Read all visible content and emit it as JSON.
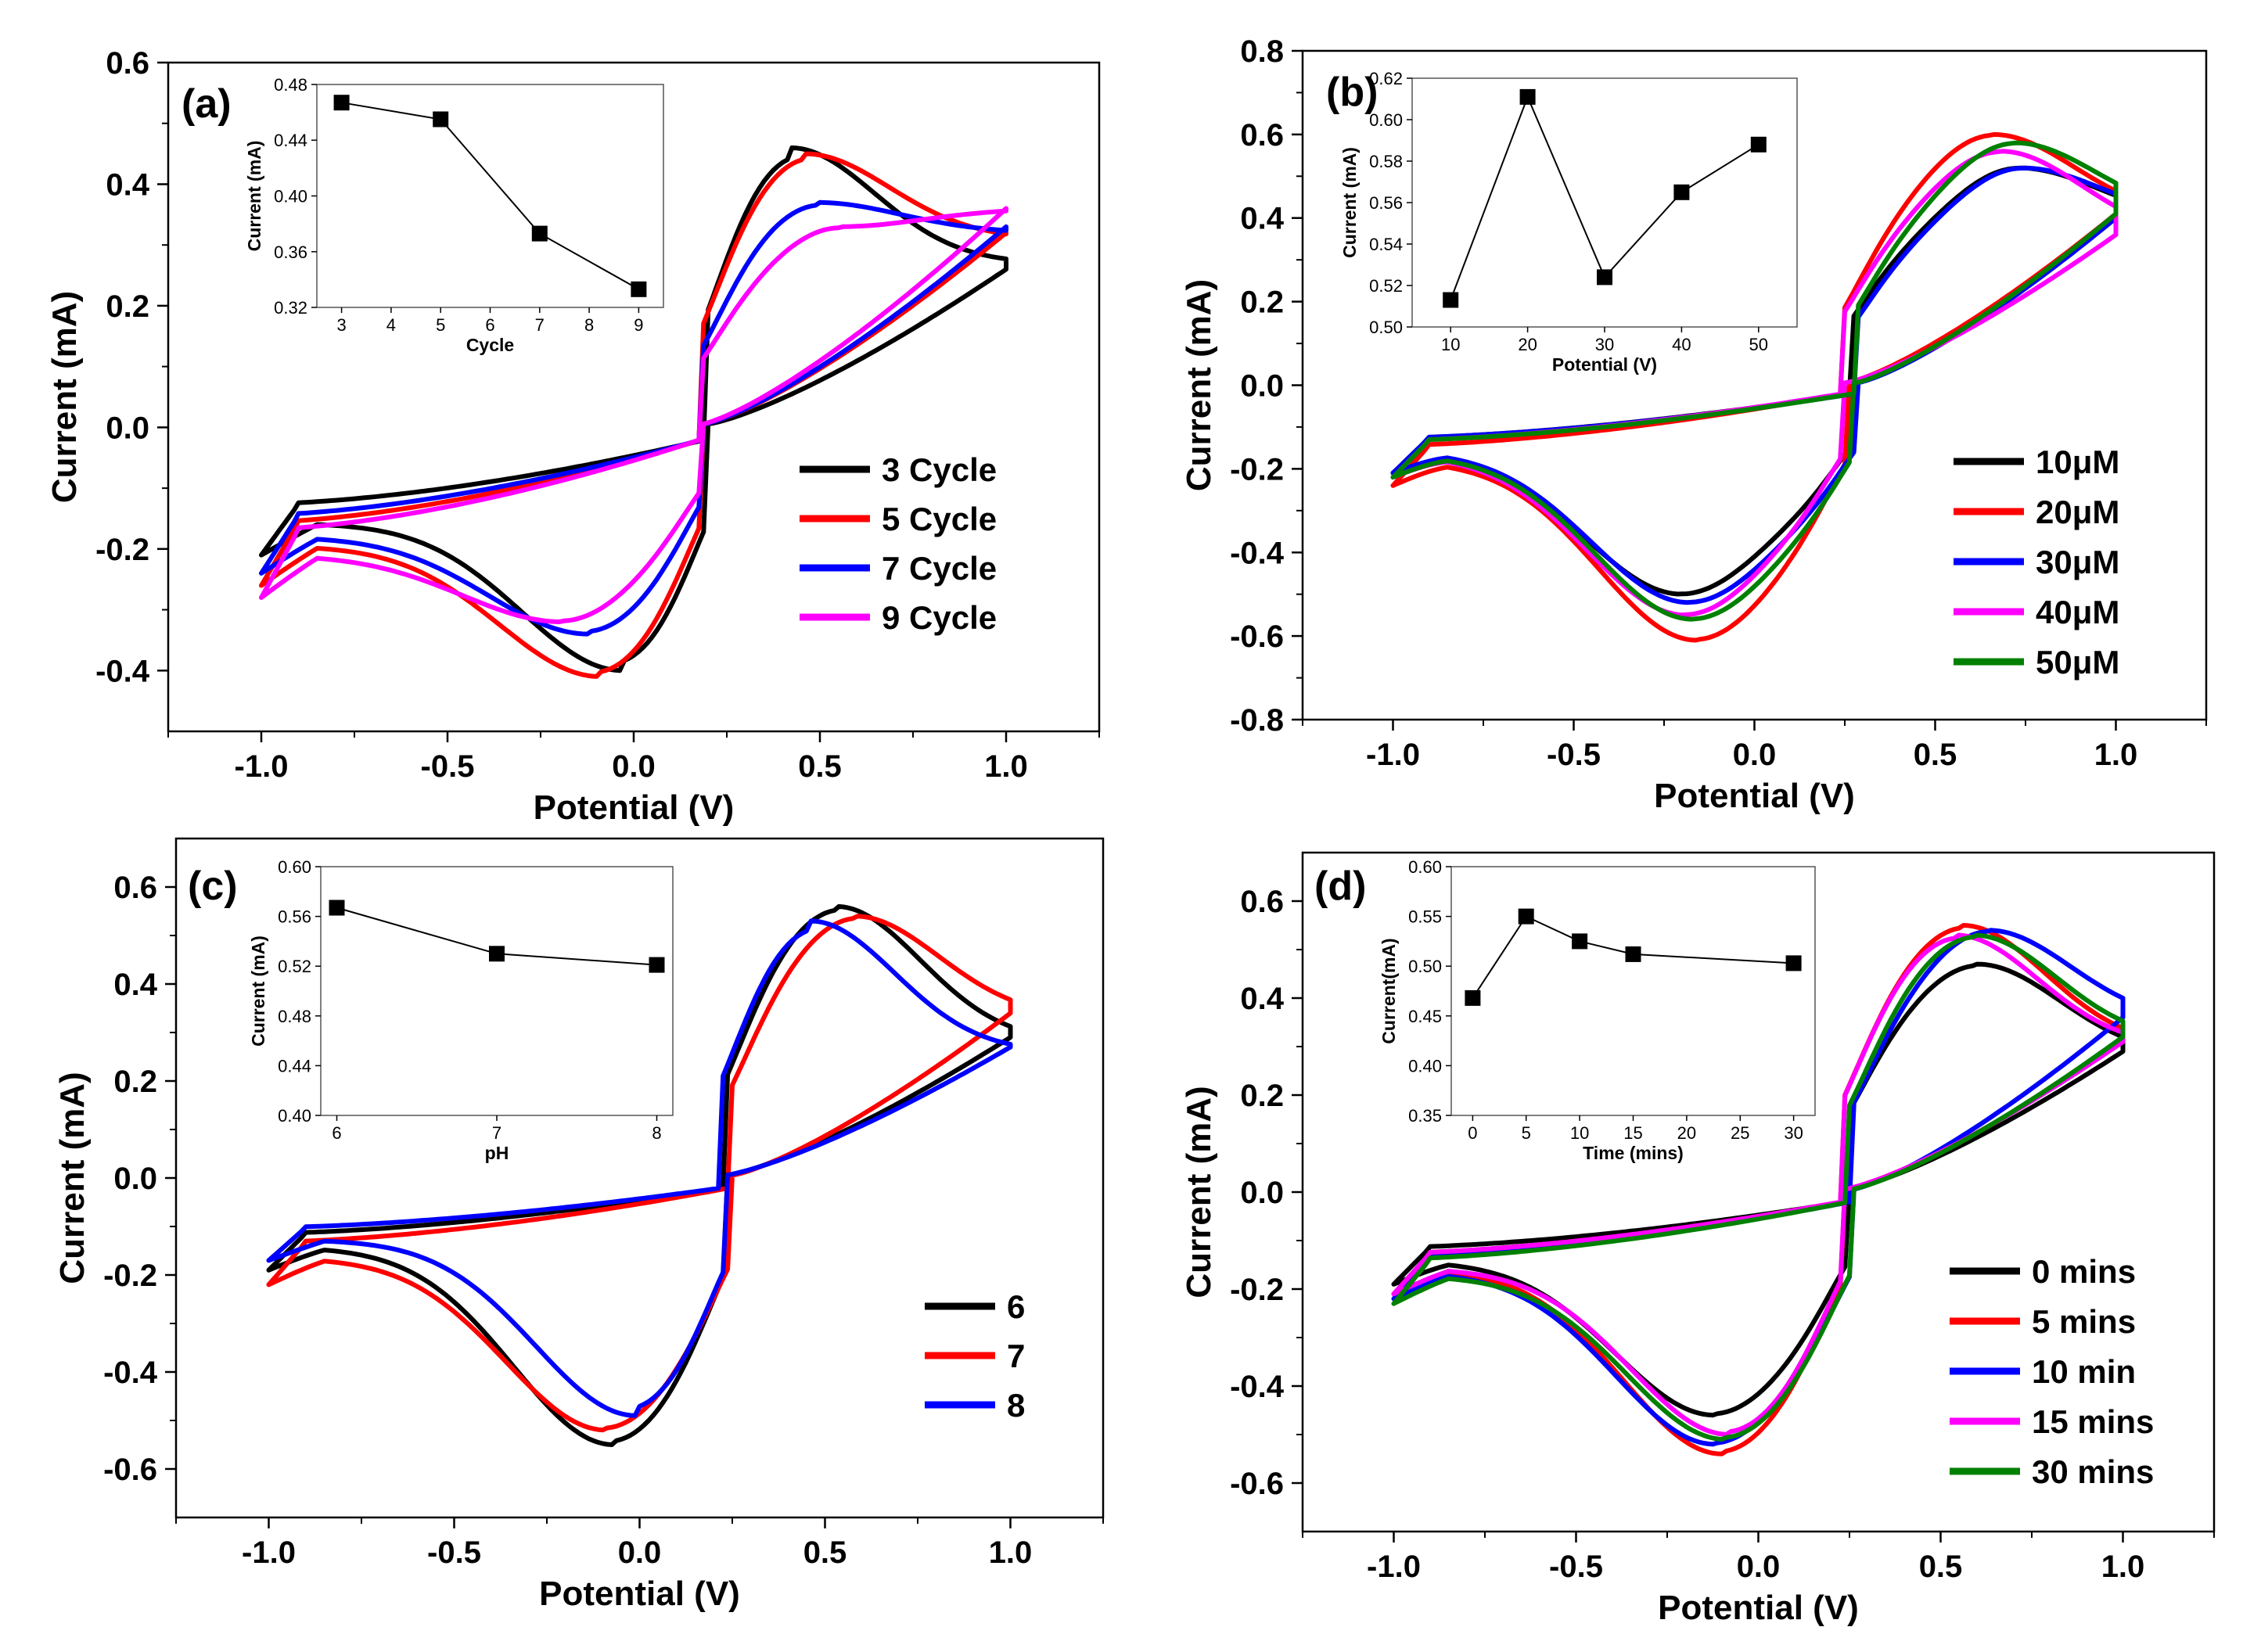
{
  "chart_data": [
    {
      "type": "line",
      "panel_label": "(a)",
      "xlabel": "Potential (V)",
      "ylabel": "Current (mA)",
      "xlim": [
        -1.25,
        1.25
      ],
      "ylim": [
        -0.5,
        0.6
      ],
      "xticks": [
        -1.0,
        -0.5,
        0.0,
        0.5,
        1.0
      ],
      "xtick_labels": [
        "-1.0",
        "-0.5",
        "0.0",
        "0.5",
        "1.0"
      ],
      "yticks": [
        -0.4,
        -0.2,
        0.0,
        0.2,
        0.4,
        0.6
      ],
      "ytick_labels": [
        "-0.4",
        "-0.2",
        "0.0",
        "0.2",
        "0.4",
        "0.6"
      ],
      "legend_position": "right",
      "series": [
        {
          "name": "3 Cycle",
          "color": "#000000",
          "Epa": 0.42,
          "Ipa": 0.46,
          "Epc": -0.03,
          "Ipc": -0.4,
          "i_start": -0.21,
          "i_end": 0.27,
          "i_neg_max": 0.26
        },
        {
          "name": "5 Cycle",
          "color": "#ff0000",
          "Epa": 0.46,
          "Ipa": 0.45,
          "Epc": -0.09,
          "Ipc": -0.41,
          "i_start": -0.26,
          "i_end": 0.31,
          "i_neg_max": 0.32
        },
        {
          "name": "7 Cycle",
          "color": "#0000ff",
          "Epa": 0.49,
          "Ipa": 0.37,
          "Epc": -0.12,
          "Ipc": -0.34,
          "i_start": -0.24,
          "i_end": 0.32,
          "i_neg_max": 0.33
        },
        {
          "name": "9 Cycle",
          "color": "#ff00ff",
          "Epa": 0.55,
          "Ipa": 0.33,
          "Epc": -0.19,
          "Ipc": -0.32,
          "i_start": -0.28,
          "i_end": 0.36,
          "i_neg_max": 0.36
        }
      ],
      "inset": {
        "xlabel": "Cycle",
        "ylabel": "Current (mA)",
        "xlim": [
          2.5,
          9.5
        ],
        "ylim": [
          0.32,
          0.48
        ],
        "xticks": [
          3,
          4,
          5,
          6,
          7,
          8,
          9
        ],
        "xtick_labels": [
          "3",
          "4",
          "5",
          "6",
          "7",
          "8",
          "9"
        ],
        "yticks": [
          0.32,
          0.36,
          0.4,
          0.44,
          0.48
        ],
        "ytick_labels": [
          "0.32",
          "0.36",
          "0.40",
          "0.44",
          "0.48"
        ],
        "x": [
          3,
          5,
          7,
          9
        ],
        "y": [
          0.467,
          0.455,
          0.373,
          0.333
        ]
      }
    },
    {
      "type": "line",
      "panel_label": "(b)",
      "xlabel": "Potential (V)",
      "ylabel": "Current (mA)",
      "xlim": [
        -1.25,
        1.25
      ],
      "ylim": [
        -0.8,
        0.8
      ],
      "xticks": [
        -1.0,
        -0.5,
        0.0,
        0.5,
        1.0
      ],
      "xtick_labels": [
        "-1.0",
        "-0.5",
        "0.0",
        "0.5",
        "1.0"
      ],
      "yticks": [
        -0.8,
        -0.6,
        -0.4,
        -0.2,
        0.0,
        0.2,
        0.4,
        0.6,
        0.8
      ],
      "ytick_labels": [
        "-0.8",
        "-0.6",
        "-0.4",
        "-0.2",
        "0.0",
        "0.2",
        "0.4",
        "0.6",
        "0.8"
      ],
      "legend_position": "bottom-right",
      "series": [
        {
          "name": "10μM",
          "color": "#000000",
          "Epa": 0.73,
          "Ipa": 0.52,
          "Epc": -0.2,
          "Ipc": -0.5,
          "i_start": -0.21,
          "i_end": 0.39,
          "i_neg_max": 0.4
        },
        {
          "name": "20μM",
          "color": "#ff0000",
          "Epa": 0.66,
          "Ipa": 0.6,
          "Epc": -0.16,
          "Ipc": -0.61,
          "i_start": -0.24,
          "i_end": 0.4,
          "i_neg_max": 0.41
        },
        {
          "name": "30μM",
          "color": "#0000ff",
          "Epa": 0.74,
          "Ipa": 0.52,
          "Epc": -0.18,
          "Ipc": -0.52,
          "i_start": -0.21,
          "i_end": 0.39,
          "i_neg_max": 0.4
        },
        {
          "name": "40μM",
          "color": "#ff00ff",
          "Epa": 0.68,
          "Ipa": 0.56,
          "Epc": -0.19,
          "Ipc": -0.55,
          "i_start": -0.22,
          "i_end": 0.35,
          "i_neg_max": 0.36
        },
        {
          "name": "50μM",
          "color": "#008000",
          "Epa": 0.72,
          "Ipa": 0.58,
          "Epc": -0.17,
          "Ipc": -0.56,
          "i_start": -0.22,
          "i_end": 0.4,
          "i_neg_max": 0.41
        }
      ],
      "inset": {
        "xlabel": "Potential (V)",
        "ylabel": "Current (mA)",
        "xlim": [
          5,
          55
        ],
        "ylim": [
          0.5,
          0.62
        ],
        "xticks": [
          10,
          20,
          30,
          40,
          50
        ],
        "xtick_labels": [
          "10",
          "20",
          "30",
          "40",
          "50"
        ],
        "yticks": [
          0.5,
          0.52,
          0.54,
          0.56,
          0.58,
          0.6,
          0.62
        ],
        "ytick_labels": [
          "0.50",
          "0.52",
          "0.54",
          "0.56",
          "0.58",
          "0.60",
          "0.62"
        ],
        "x": [
          10,
          20,
          30,
          40,
          50
        ],
        "y": [
          0.513,
          0.611,
          0.524,
          0.565,
          0.588
        ]
      }
    },
    {
      "type": "line",
      "panel_label": "(c)",
      "xlabel": "Potential (V)",
      "ylabel": "Current (mA)",
      "xlim": [
        -1.25,
        1.25
      ],
      "ylim": [
        -0.7,
        0.7
      ],
      "xticks": [
        -1.0,
        -0.5,
        0.0,
        0.5,
        1.0
      ],
      "xtick_labels": [
        "-1.0",
        "-0.5",
        "0.0",
        "0.5",
        "1.0"
      ],
      "yticks": [
        -0.6,
        -0.4,
        -0.2,
        0.0,
        0.2,
        0.4,
        0.6
      ],
      "ytick_labels": [
        "-0.6",
        "-0.4",
        "-0.2",
        "0.0",
        "0.2",
        "0.4",
        "0.6"
      ],
      "legend_position": "bottom-right",
      "series": [
        {
          "name": "6",
          "color": "#000000",
          "Epa": 0.53,
          "Ipa": 0.56,
          "Epc": -0.07,
          "Ipc": -0.55,
          "i_start": -0.19,
          "i_end": 0.28,
          "i_neg_max": 0.29
        },
        {
          "name": "7",
          "color": "#ff0000",
          "Epa": 0.58,
          "Ipa": 0.54,
          "Epc": -0.09,
          "Ipc": -0.52,
          "i_start": -0.22,
          "i_end": 0.33,
          "i_neg_max": 0.34
        },
        {
          "name": "8",
          "color": "#0000ff",
          "Epa": 0.46,
          "Ipa": 0.53,
          "Epc": -0.01,
          "Ipc": -0.49,
          "i_start": -0.17,
          "i_end": 0.26,
          "i_neg_max": 0.27
        }
      ],
      "inset": {
        "xlabel": "pH",
        "ylabel": "Current (mA)",
        "xlim": [
          5.9,
          8.1
        ],
        "ylim": [
          0.4,
          0.6
        ],
        "xticks": [
          6,
          7,
          8
        ],
        "xtick_labels": [
          "6",
          "7",
          "8"
        ],
        "yticks": [
          0.4,
          0.44,
          0.48,
          0.52,
          0.56,
          0.6
        ],
        "ytick_labels": [
          "0.40",
          "0.44",
          "0.48",
          "0.52",
          "0.56",
          "0.60"
        ],
        "x": [
          6,
          7,
          8
        ],
        "y": [
          0.567,
          0.53,
          0.521
        ]
      }
    },
    {
      "type": "line",
      "panel_label": "(d)",
      "xlabel": "Potential (V)",
      "ylabel": "Current (mA)",
      "xlim": [
        -1.25,
        1.25
      ],
      "ylim": [
        -0.7,
        0.7
      ],
      "xticks": [
        -1.0,
        -0.5,
        0.0,
        0.5,
        1.0
      ],
      "xtick_labels": [
        "-1.0",
        "-0.5",
        "0.0",
        "0.5",
        "1.0"
      ],
      "yticks": [
        -0.6,
        -0.4,
        -0.2,
        0.0,
        0.2,
        0.4,
        0.6
      ],
      "ytick_labels": [
        "-0.6",
        "-0.4",
        "-0.2",
        "0.0",
        "0.2",
        "0.4",
        "0.6"
      ],
      "legend_position": "bottom-right",
      "series": [
        {
          "name": "0 mins",
          "color": "#000000",
          "Epa": 0.6,
          "Ipa": 0.47,
          "Epc": -0.12,
          "Ipc": -0.46,
          "i_start": -0.19,
          "i_end": 0.28,
          "i_neg_max": 0.29
        },
        {
          "name": "5 mins",
          "color": "#ff0000",
          "Epa": 0.56,
          "Ipa": 0.55,
          "Epc": -0.1,
          "Ipc": -0.54,
          "i_start": -0.21,
          "i_end": 0.3,
          "i_neg_max": 0.31
        },
        {
          "name": "10 min",
          "color": "#0000ff",
          "Epa": 0.63,
          "Ipa": 0.54,
          "Epc": -0.12,
          "Ipc": -0.52,
          "i_start": -0.22,
          "i_end": 0.35,
          "i_neg_max": 0.36
        },
        {
          "name": "15 mins",
          "color": "#ff00ff",
          "Epa": 0.54,
          "Ipa": 0.53,
          "Epc": -0.08,
          "Ipc": -0.5,
          "i_start": -0.21,
          "i_end": 0.3,
          "i_neg_max": 0.31
        },
        {
          "name": "30 mins",
          "color": "#008000",
          "Epa": 0.59,
          "Ipa": 0.53,
          "Epc": -0.09,
          "Ipc": -0.51,
          "i_start": -0.23,
          "i_end": 0.31,
          "i_neg_max": 0.32
        }
      ],
      "inset": {
        "xlabel": "Time (mins)",
        "ylabel": "Current(mA)",
        "xlim": [
          -2,
          32
        ],
        "ylim": [
          0.35,
          0.6
        ],
        "xticks": [
          0,
          5,
          10,
          15,
          20,
          25,
          30
        ],
        "xtick_labels": [
          "0",
          "5",
          "10",
          "15",
          "20",
          "25",
          "30"
        ],
        "yticks": [
          0.35,
          0.4,
          0.45,
          0.5,
          0.55,
          0.6
        ],
        "ytick_labels": [
          "0.35",
          "0.40",
          "0.45",
          "0.50",
          "0.55",
          "0.60"
        ],
        "x": [
          0,
          5,
          10,
          15,
          30
        ],
        "y": [
          0.468,
          0.55,
          0.525,
          0.512,
          0.503
        ]
      }
    }
  ]
}
